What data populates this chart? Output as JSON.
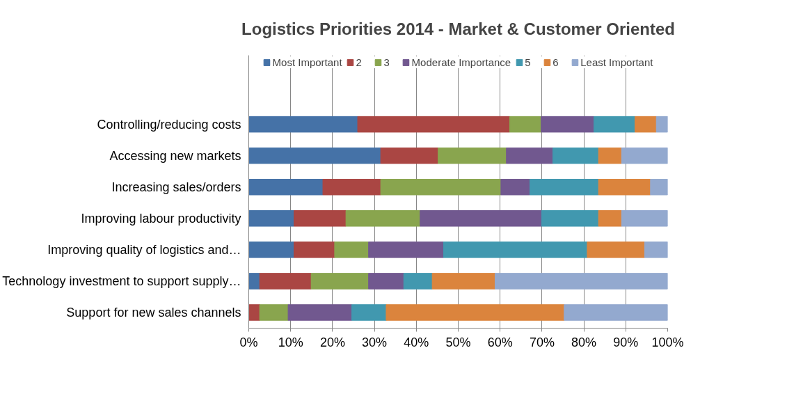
{
  "chart_data": {
    "type": "bar",
    "orientation": "horizontal",
    "stacked": true,
    "title": "Logistics Priorities 2014 - Market & Customer Oriented",
    "categories": [
      "Controlling/reducing costs",
      "Accessing new markets",
      "Increasing sales/orders",
      "Improving labour productivity",
      "Improving quality of logistics and…",
      "Technology investment to support supply…",
      "Support for new sales channels"
    ],
    "series": [
      {
        "name": "Most Important",
        "color": "#4572a7",
        "values": [
          26.0,
          31.5,
          17.7,
          10.8,
          10.8,
          2.6,
          0
        ]
      },
      {
        "name": "2",
        "color": "#aa4643",
        "values": [
          36.3,
          13.7,
          13.8,
          12.4,
          9.7,
          12.3,
          2.6
        ]
      },
      {
        "name": "3",
        "color": "#89a54e",
        "values": [
          7.5,
          16.3,
          28.7,
          17.7,
          8.1,
          13.7,
          6.8
        ]
      },
      {
        "name": "Moderate Importance",
        "color": "#71588f",
        "values": [
          12.6,
          11.1,
          6.9,
          29.0,
          17.9,
          8.4,
          15.2
        ]
      },
      {
        "name": "5",
        "color": "#4198af",
        "values": [
          9.8,
          10.9,
          16.4,
          13.6,
          34.3,
          6.8,
          8.2
        ]
      },
      {
        "name": "6",
        "color": "#db843d",
        "values": [
          5.1,
          5.5,
          12.4,
          5.5,
          13.7,
          15.0,
          42.5
        ]
      },
      {
        "name": "Least Important",
        "color": "#93a9cf",
        "values": [
          2.7,
          11.0,
          4.1,
          11.0,
          5.5,
          41.2,
          24.7
        ]
      }
    ],
    "xlim": [
      0,
      100
    ],
    "xticks": [
      {
        "value": 0,
        "label": "0%"
      },
      {
        "value": 10,
        "label": "10%"
      },
      {
        "value": 20,
        "label": "20%"
      },
      {
        "value": 30,
        "label": "30%"
      },
      {
        "value": 40,
        "label": "40%"
      },
      {
        "value": 50,
        "label": "50%"
      },
      {
        "value": 60,
        "label": "60%"
      },
      {
        "value": 70,
        "label": "70%"
      },
      {
        "value": 80,
        "label": "80%"
      },
      {
        "value": 90,
        "label": "90%"
      },
      {
        "value": 100,
        "label": "100%"
      }
    ],
    "grid": "x",
    "legend": "top"
  }
}
